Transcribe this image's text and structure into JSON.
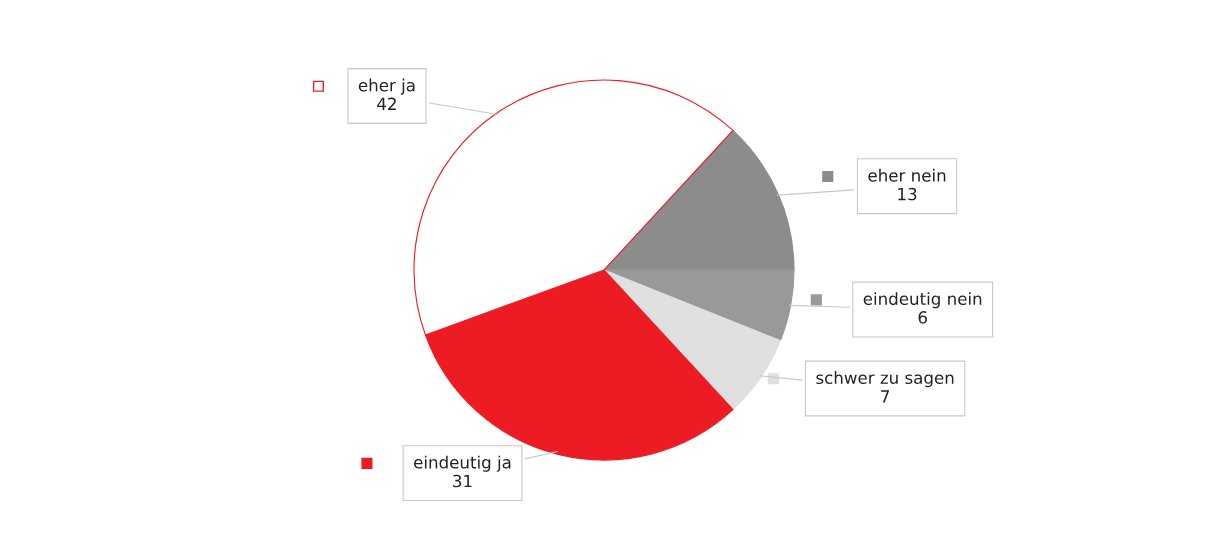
{
  "chart_data": {
    "type": "pie",
    "categories": [
      "eher nein",
      "eindeutig nein",
      "schwer zu sagen",
      "eindeutig ja",
      "eher ja"
    ],
    "values": [
      13,
      6,
      7,
      31,
      42
    ],
    "colors": [
      "#8c8c8c",
      "#999999",
      "#e0e0e0",
      "#ed1c24",
      "#ffffff"
    ],
    "data_labels": true,
    "legend": "right"
  }
}
